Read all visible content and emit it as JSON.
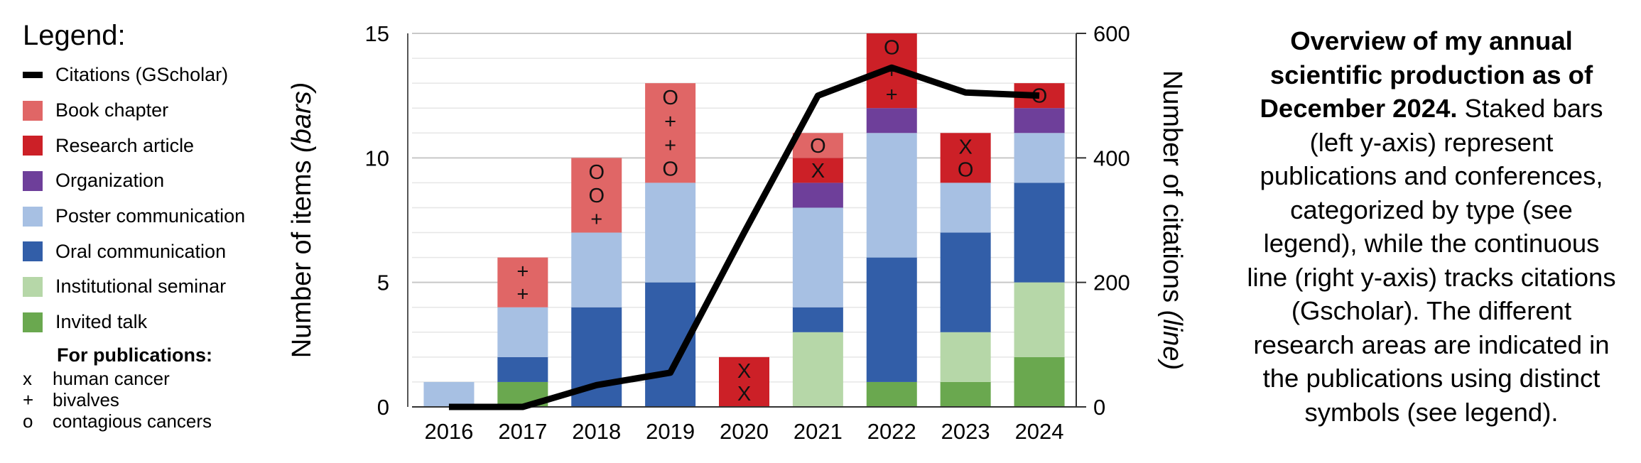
{
  "legend": {
    "title": "Legend:",
    "items": [
      {
        "label": "Citations (GScholar)",
        "kind": "line",
        "color": "#000000"
      },
      {
        "label": "Book chapter",
        "kind": "box",
        "color": "#e06666"
      },
      {
        "label": "Research article",
        "kind": "box",
        "color": "#cc2027"
      },
      {
        "label": "Organization",
        "kind": "box",
        "color": "#6e3f9a"
      },
      {
        "label": "Poster communication",
        "kind": "box",
        "color": "#a7c0e3"
      },
      {
        "label": "Oral communication",
        "kind": "box",
        "color": "#325ea8"
      },
      {
        "label": "Institutional seminar",
        "kind": "box",
        "color": "#b6d7a8"
      },
      {
        "label": "Invited talk",
        "kind": "box",
        "color": "#6aa84f"
      }
    ],
    "publications_heading": "For publications:",
    "symbols": [
      {
        "symbol": "x",
        "label": "human cancer"
      },
      {
        "symbol": "+",
        "label": "bivalves"
      },
      {
        "symbol": "o",
        "label": "contagious cancers"
      }
    ]
  },
  "caption": {
    "bold": "Overview of my annual scientific production as of December 2024.",
    "rest": " Staked bars (left y-axis) represent publications and conferences, categorized by type (see legend), while the continuous line (right y-axis) tracks citations (Gscholar). The different research areas are indicated in the publications using distinct symbols (see legend)."
  },
  "chart_data": {
    "type": "bar",
    "stacked": true,
    "categories": [
      "2016",
      "2017",
      "2018",
      "2019",
      "2020",
      "2021",
      "2022",
      "2023",
      "2024"
    ],
    "ylabel_left": "Number of items",
    "ylabel_left_italic": "(bars)",
    "ylabel_right": "Number of citations",
    "ylabel_right_italic": "(line)",
    "ylim_left": [
      0,
      15
    ],
    "ylim_right": [
      0,
      600
    ],
    "yticks_left": [
      0,
      5,
      10,
      15
    ],
    "yticks_right": [
      0,
      200,
      400,
      600
    ],
    "grid": true,
    "series": [
      {
        "name": "Invited talk",
        "color": "#6aa84f",
        "values": [
          0,
          1,
          0,
          0,
          0,
          0,
          1,
          1,
          2
        ]
      },
      {
        "name": "Institutional seminar",
        "color": "#b6d7a8",
        "values": [
          0,
          0,
          0,
          0,
          0,
          3,
          0,
          2,
          3
        ]
      },
      {
        "name": "Oral communication",
        "color": "#325ea8",
        "values": [
          0,
          1,
          4,
          5,
          0,
          1,
          5,
          4,
          4
        ]
      },
      {
        "name": "Poster communication",
        "color": "#a7c0e3",
        "values": [
          1,
          2,
          3,
          4,
          0,
          4,
          5,
          2,
          2
        ]
      },
      {
        "name": "Organization",
        "color": "#6e3f9a",
        "values": [
          0,
          0,
          0,
          0,
          0,
          1,
          1,
          0,
          1
        ]
      },
      {
        "name": "Research article",
        "color": "#cc2027",
        "values": [
          0,
          0,
          0,
          0,
          2,
          1,
          3,
          2,
          1
        ]
      },
      {
        "name": "Book chapter",
        "color": "#e06666",
        "values": [
          0,
          2,
          3,
          4,
          0,
          1,
          0,
          0,
          0
        ]
      }
    ],
    "line": {
      "name": "Citations (GScholar)",
      "color": "#000000",
      "values": [
        0,
        0,
        35,
        55,
        280,
        500,
        545,
        505,
        500
      ]
    },
    "annotations": [
      {
        "category": "2017",
        "series": "Book chapter",
        "symbols": [
          "+",
          "+"
        ]
      },
      {
        "category": "2018",
        "series": "Book chapter",
        "symbols": [
          "O",
          "O",
          "+"
        ]
      },
      {
        "category": "2019",
        "series": "Book chapter",
        "symbols": [
          "O",
          "+",
          "+",
          "O"
        ]
      },
      {
        "category": "2020",
        "series": "Research article",
        "symbols": [
          "X",
          "X"
        ]
      },
      {
        "category": "2021",
        "series": "Book chapter",
        "symbols": [
          "O"
        ]
      },
      {
        "category": "2021",
        "series": "Research article",
        "symbols": [
          "X"
        ]
      },
      {
        "category": "2022",
        "series": "Research article",
        "symbols": [
          "O",
          "+",
          "+"
        ]
      },
      {
        "category": "2023",
        "series": "Research article",
        "symbols": [
          "X",
          "O"
        ]
      },
      {
        "category": "2024",
        "series": "Research article",
        "symbols": [
          "O"
        ]
      }
    ]
  }
}
